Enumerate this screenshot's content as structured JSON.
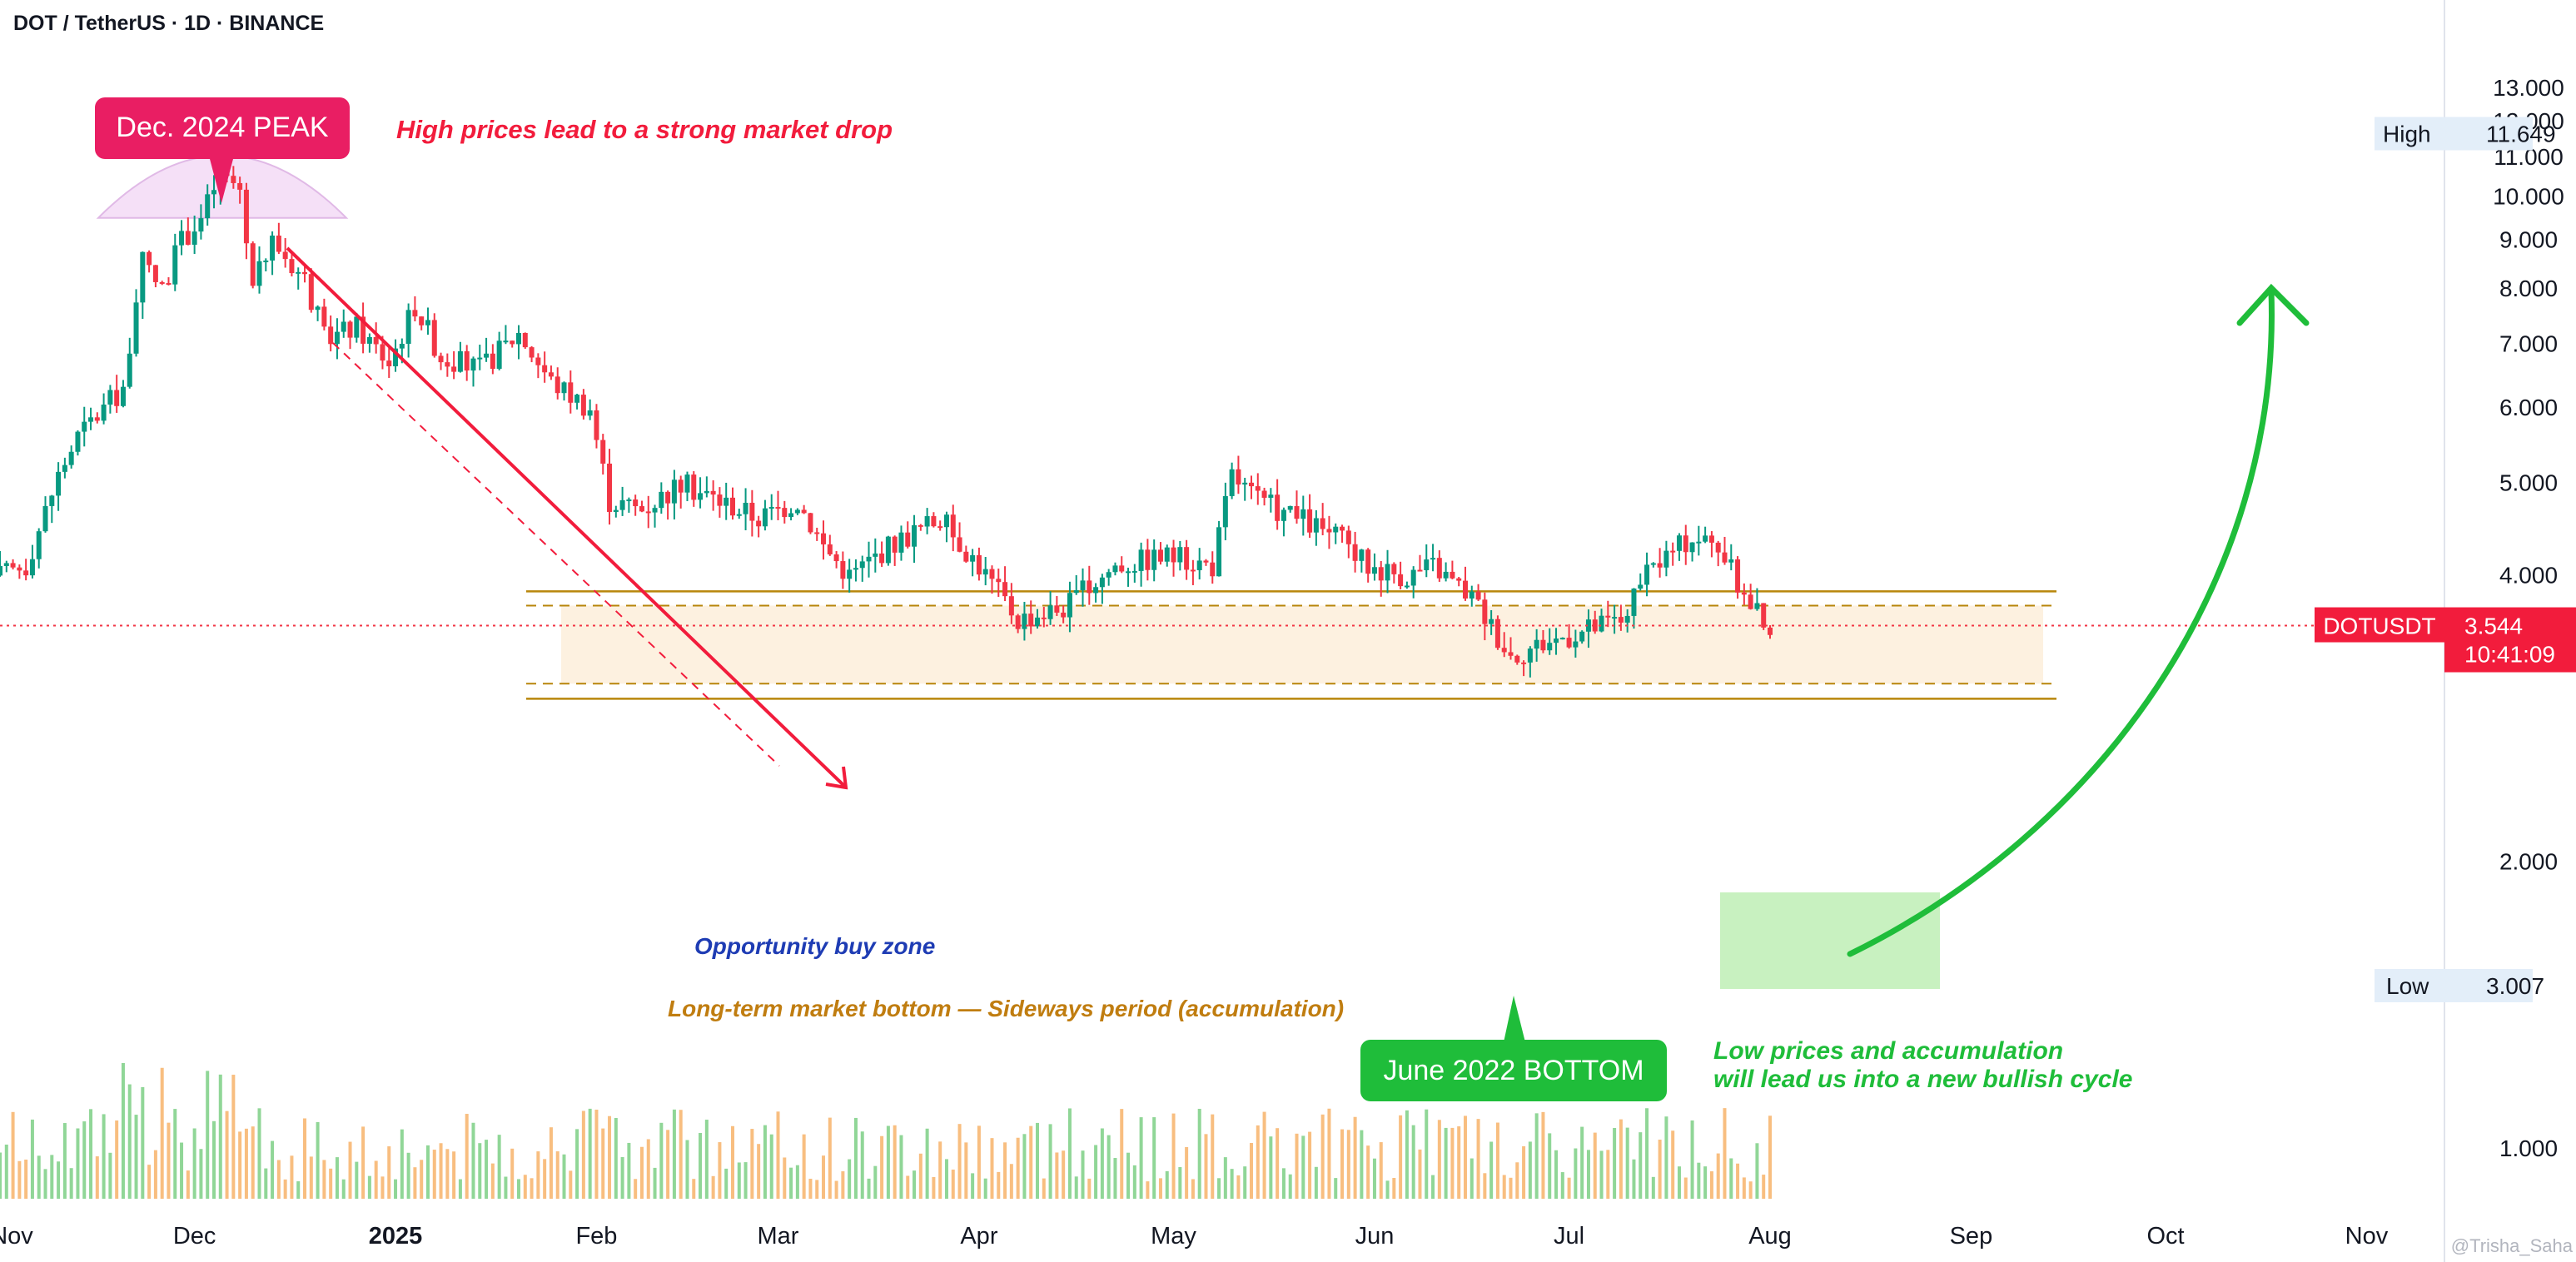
{
  "header": {
    "title": "DOT / TetherUS · 1D · BINANCE"
  },
  "watermark": "@Trisha_Saha",
  "colors": {
    "up": "#089981",
    "down": "#f23645",
    "annotation_red": "#f21c3c",
    "annotation_green": "#1fbd3a",
    "zone_brown": "#b8860b",
    "zone_fill": "#fdf1e0",
    "zone_text_blue": "#1e3cb4",
    "peak_dome": "#f3d9f6"
  },
  "chart_data": {
    "type": "candlestick",
    "symbol": "DOTUSDT",
    "timeframe": "1D",
    "exchange": "BINANCE",
    "price_axis": {
      "ticks": [
        "13.000",
        "12.000",
        "11.000",
        "10.000",
        "9.000",
        "8.000",
        "7.000",
        "6.000",
        "5.000",
        "4.000",
        "2.000",
        "1.000"
      ],
      "scale": "log",
      "range": [
        0.8,
        14.5
      ]
    },
    "time_axis": {
      "ticks": [
        {
          "label": "Nov",
          "date": "2024-11-01"
        },
        {
          "label": "Dec",
          "date": "2024-12-01"
        },
        {
          "label": "2025",
          "date": "2025-01-01",
          "bold": true
        },
        {
          "label": "Feb",
          "date": "2025-02-01"
        },
        {
          "label": "Mar",
          "date": "2025-03-01"
        },
        {
          "label": "Apr",
          "date": "2025-04-01"
        },
        {
          "label": "May",
          "date": "2025-05-01"
        },
        {
          "label": "Jun",
          "date": "2025-06-01"
        },
        {
          "label": "Jul",
          "date": "2025-07-01"
        },
        {
          "label": "Aug",
          "date": "2025-08-01"
        },
        {
          "label": "Sep",
          "date": "2025-09-01"
        },
        {
          "label": "Oct",
          "date": "2025-10-01"
        },
        {
          "label": "Nov",
          "date": "2025-11-01"
        }
      ]
    },
    "price_path": [
      {
        "date": "2024-11-01",
        "price": 4.0
      },
      {
        "date": "2024-11-05",
        "price": 4.1
      },
      {
        "date": "2024-11-10",
        "price": 5.1
      },
      {
        "date": "2024-11-13",
        "price": 5.6
      },
      {
        "date": "2024-11-17",
        "price": 6.0
      },
      {
        "date": "2024-11-20",
        "price": 6.3
      },
      {
        "date": "2024-11-23",
        "price": 8.5
      },
      {
        "date": "2024-11-26",
        "price": 8.0
      },
      {
        "date": "2024-11-29",
        "price": 9.0
      },
      {
        "date": "2024-12-02",
        "price": 9.5
      },
      {
        "date": "2024-12-05",
        "price": 10.6
      },
      {
        "date": "2024-12-08",
        "price": 10.2
      },
      {
        "date": "2024-12-10",
        "price": 8.0
      },
      {
        "date": "2024-12-13",
        "price": 9.0
      },
      {
        "date": "2024-12-18",
        "price": 8.2
      },
      {
        "date": "2024-12-21",
        "price": 7.1
      },
      {
        "date": "2024-12-26",
        "price": 7.3
      },
      {
        "date": "2024-12-31",
        "price": 6.7
      },
      {
        "date": "2025-01-04",
        "price": 7.7
      },
      {
        "date": "2025-01-08",
        "price": 6.8
      },
      {
        "date": "2025-01-14",
        "price": 6.6
      },
      {
        "date": "2025-01-20",
        "price": 7.2
      },
      {
        "date": "2025-01-25",
        "price": 6.4
      },
      {
        "date": "2025-01-31",
        "price": 6.0
      },
      {
        "date": "2025-02-03",
        "price": 4.8
      },
      {
        "date": "2025-02-08",
        "price": 4.7
      },
      {
        "date": "2025-02-14",
        "price": 5.0
      },
      {
        "date": "2025-02-20",
        "price": 4.8
      },
      {
        "date": "2025-02-26",
        "price": 4.6
      },
      {
        "date": "2025-03-04",
        "price": 4.8
      },
      {
        "date": "2025-03-08",
        "price": 4.3
      },
      {
        "date": "2025-03-12",
        "price": 4.0
      },
      {
        "date": "2025-03-18",
        "price": 4.3
      },
      {
        "date": "2025-03-26",
        "price": 4.6
      },
      {
        "date": "2025-04-01",
        "price": 4.1
      },
      {
        "date": "2025-04-07",
        "price": 3.6
      },
      {
        "date": "2025-04-14",
        "price": 3.7
      },
      {
        "date": "2025-04-22",
        "price": 4.1
      },
      {
        "date": "2025-04-30",
        "price": 4.2
      },
      {
        "date": "2025-05-07",
        "price": 4.1
      },
      {
        "date": "2025-05-10",
        "price": 5.1
      },
      {
        "date": "2025-05-14",
        "price": 4.8
      },
      {
        "date": "2025-05-20",
        "price": 4.6
      },
      {
        "date": "2025-05-26",
        "price": 4.4
      },
      {
        "date": "2025-05-31",
        "price": 4.1
      },
      {
        "date": "2025-06-06",
        "price": 4.0
      },
      {
        "date": "2025-06-10",
        "price": 4.1
      },
      {
        "date": "2025-06-16",
        "price": 3.8
      },
      {
        "date": "2025-06-22",
        "price": 3.3
      },
      {
        "date": "2025-06-27",
        "price": 3.4
      },
      {
        "date": "2025-07-03",
        "price": 3.5
      },
      {
        "date": "2025-07-09",
        "price": 3.6
      },
      {
        "date": "2025-07-14",
        "price": 4.1
      },
      {
        "date": "2025-07-20",
        "price": 4.4
      },
      {
        "date": "2025-07-24",
        "price": 4.3
      },
      {
        "date": "2025-07-28",
        "price": 3.8
      },
      {
        "date": "2025-08-01",
        "price": 3.544
      }
    ],
    "high_marker": {
      "label": "High",
      "value": "11.649"
    },
    "low_marker": {
      "label": "Low",
      "value": "3.007"
    },
    "last_price": {
      "symbol": "DOTUSDT",
      "value": "3.544",
      "countdown": "10:41:09"
    },
    "annotations": {
      "peak_label": "Dec. 2024 PEAK",
      "peak_text": "High prices lead to a strong market drop",
      "buy_zone": "Opportunity buy zone",
      "bottom_zone": "Long-term market bottom — Sideways period (accumulation)",
      "bottom_label": "June 2022 BOTTOM",
      "bullish_text_line1": "Low prices and accumulation",
      "bullish_text_line2": "will lead us into a new bullish cycle"
    },
    "zone": {
      "upper": 3.85,
      "upper_dashed": 3.72,
      "lower_dashed": 3.08,
      "lower": 2.97
    }
  }
}
